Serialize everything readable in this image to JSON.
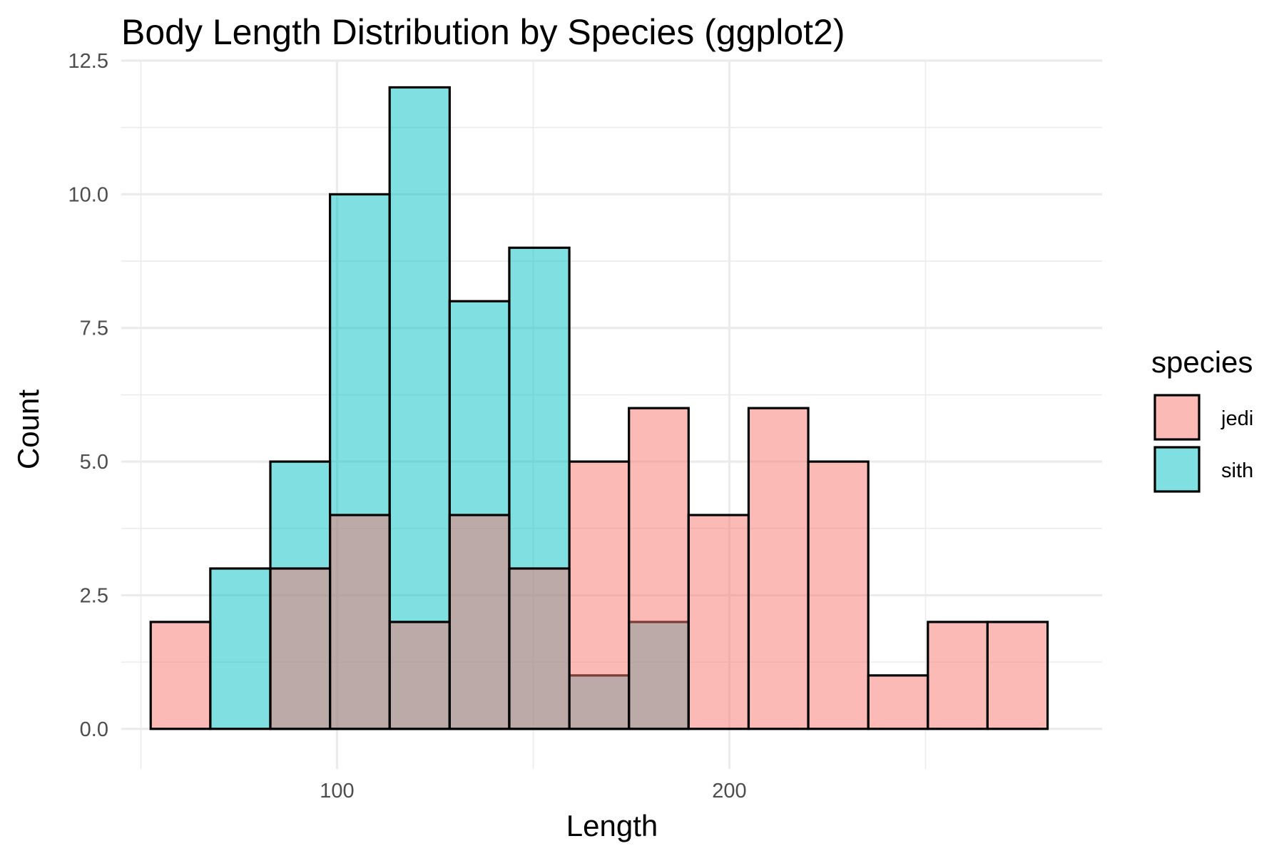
{
  "chart_data": {
    "type": "bar",
    "title": "Body Length Distribution by Species (ggplot2)",
    "xlabel": "Length",
    "ylabel": "Count",
    "xlim": [
      45,
      295
    ],
    "ylim": [
      -0.75,
      12.5
    ],
    "x_ticks": [
      100,
      200
    ],
    "y_ticks": [
      0.0,
      2.5,
      5.0,
      7.5,
      10.0,
      12.5
    ],
    "y_tick_labels": [
      "0.0",
      "2.5",
      "5.0",
      "7.5",
      "10.0",
      "12.5"
    ],
    "x_tick_labels": [
      "100",
      "200"
    ],
    "grid": true,
    "legend": {
      "title": "species",
      "position": "right"
    },
    "bin_edges": [
      52.5,
      67.7,
      83.0,
      98.2,
      113.4,
      128.7,
      143.9,
      159.2,
      174.4,
      189.6,
      204.9,
      220.1,
      235.4,
      250.6,
      265.8,
      281.1
    ],
    "series": [
      {
        "name": "jedi",
        "color": "#F8766D",
        "opacity": 0.5,
        "values": [
          2,
          0,
          3,
          4,
          2,
          4,
          3,
          5,
          6,
          4,
          6,
          5,
          1,
          2,
          2
        ]
      },
      {
        "name": "sith",
        "color": "#00BFC4",
        "opacity": 0.5,
        "values": [
          0,
          3,
          5,
          10,
          12,
          8,
          9,
          1,
          2,
          0,
          0,
          0,
          0,
          0,
          0
        ]
      }
    ]
  }
}
